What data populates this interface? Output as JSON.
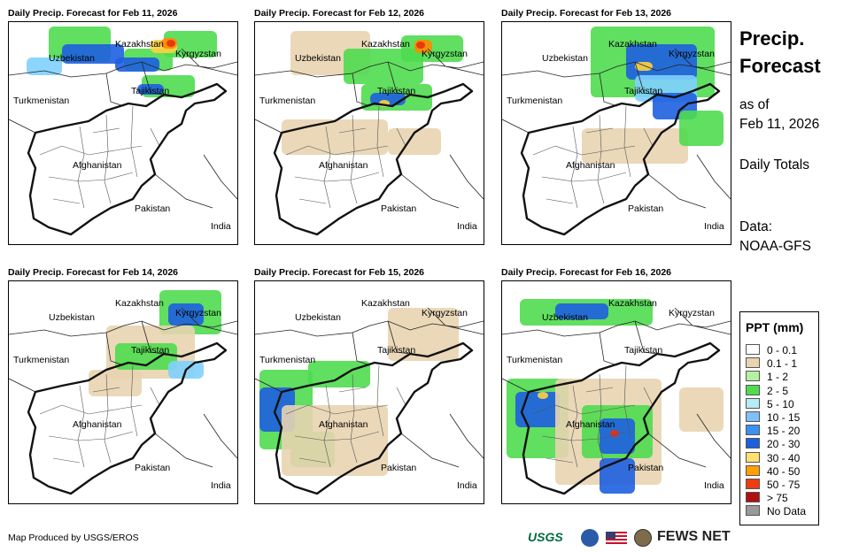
{
  "panels": [
    {
      "title": "Daily Precip. Forecast for Feb 11, 2026",
      "blobs": [
        [
          45,
          5,
          70,
          40,
          "#4fdc4f"
        ],
        [
          130,
          30,
          55,
          25,
          "#4fdc4f"
        ],
        [
          175,
          10,
          60,
          30,
          "#4fdc4f"
        ],
        [
          60,
          25,
          70,
          22,
          "#1e5fe0"
        ],
        [
          120,
          40,
          50,
          16,
          "#1e5fe0"
        ],
        [
          160,
          20,
          30,
          15,
          "#ffd040"
        ],
        [
          172,
          18,
          18,
          12,
          "#ff8800"
        ],
        [
          178,
          20,
          10,
          8,
          "#e83010"
        ],
        [
          150,
          60,
          60,
          25,
          "#4fdc4f"
        ],
        [
          145,
          70,
          30,
          12,
          "#1e5fe0"
        ],
        [
          20,
          40,
          40,
          20,
          "#7fd0ff"
        ]
      ]
    },
    {
      "title": "Daily Precip. Forecast for Feb 12, 2026",
      "blobs": [
        [
          40,
          10,
          90,
          50,
          "#e8d4b0"
        ],
        [
          100,
          30,
          90,
          40,
          "#4fdc4f"
        ],
        [
          165,
          15,
          70,
          30,
          "#4fdc4f"
        ],
        [
          180,
          20,
          20,
          15,
          "#ff8800"
        ],
        [
          182,
          22,
          10,
          8,
          "#e83010"
        ],
        [
          120,
          70,
          80,
          30,
          "#4fdc4f"
        ],
        [
          130,
          80,
          40,
          14,
          "#1e5fe0"
        ],
        [
          140,
          88,
          12,
          8,
          "#ffd040"
        ],
        [
          30,
          110,
          120,
          40,
          "#e8d4b0"
        ],
        [
          150,
          120,
          60,
          30,
          "#e8d4b0"
        ]
      ]
    },
    {
      "title": "Daily Precip. Forecast for Feb 13, 2026",
      "blobs": [
        [
          100,
          5,
          140,
          80,
          "#4fdc4f"
        ],
        [
          140,
          25,
          80,
          40,
          "#1e5fe0"
        ],
        [
          150,
          60,
          70,
          30,
          "#7fd0ff"
        ],
        [
          170,
          80,
          50,
          30,
          "#1e5fe0"
        ],
        [
          90,
          120,
          120,
          40,
          "#e8d4b0"
        ],
        [
          200,
          100,
          50,
          40,
          "#4fdc4f"
        ],
        [
          150,
          45,
          20,
          10,
          "#ffd040"
        ]
      ]
    },
    {
      "title": "Daily Precip. Forecast for Feb 14, 2026",
      "blobs": [
        [
          170,
          10,
          70,
          50,
          "#4fdc4f"
        ],
        [
          180,
          25,
          40,
          25,
          "#1e5fe0"
        ],
        [
          110,
          50,
          100,
          60,
          "#e8d4b0"
        ],
        [
          120,
          70,
          70,
          30,
          "#4fdc4f"
        ],
        [
          180,
          90,
          40,
          20,
          "#7fd0ff"
        ],
        [
          90,
          100,
          60,
          30,
          "#e8d4b0"
        ]
      ]
    },
    {
      "title": "Daily Precip. Forecast for Feb 15, 2026",
      "blobs": [
        [
          5,
          100,
          60,
          90,
          "#4fdc4f"
        ],
        [
          5,
          120,
          40,
          50,
          "#1e5fe0"
        ],
        [
          40,
          170,
          50,
          40,
          "#4fdc4f"
        ],
        [
          30,
          140,
          120,
          80,
          "#e8d4b0"
        ],
        [
          150,
          30,
          80,
          60,
          "#e8d4b0"
        ],
        [
          60,
          90,
          70,
          30,
          "#4fdc4f"
        ]
      ]
    },
    {
      "title": "Daily Precip. Forecast for Feb 16, 2026",
      "blobs": [
        [
          20,
          20,
          150,
          30,
          "#4fdc4f"
        ],
        [
          60,
          25,
          60,
          18,
          "#1e5fe0"
        ],
        [
          5,
          110,
          70,
          90,
          "#4fdc4f"
        ],
        [
          15,
          125,
          50,
          40,
          "#1e5fe0"
        ],
        [
          40,
          125,
          12,
          8,
          "#ffd040"
        ],
        [
          60,
          110,
          120,
          120,
          "#e8d4b0"
        ],
        [
          90,
          140,
          80,
          60,
          "#4fdc4f"
        ],
        [
          110,
          155,
          40,
          40,
          "#1e5fe0"
        ],
        [
          122,
          168,
          10,
          8,
          "#e83010"
        ],
        [
          110,
          200,
          40,
          40,
          "#1e5fe0"
        ],
        [
          200,
          120,
          50,
          50,
          "#e8d4b0"
        ]
      ]
    }
  ],
  "labels": {
    "uzbekistan": "Uzbekistan",
    "kazakhstan": "Kazakhstan",
    "kyrgyzstan": "Kyrgyzstan",
    "tajikistan": "Tajikistan",
    "turkmenistan": "Turkmenistan",
    "afghanistan": "Afghanistan",
    "pakistan": "Pakistan",
    "india": "India"
  },
  "side": {
    "title_line1": "Precip.",
    "title_line2": "Forecast",
    "asof_line1": "as of",
    "asof_line2": "Feb 11, 2026",
    "totals": "Daily Totals",
    "data_line1": "Data:",
    "data_line2": "NOAA-GFS"
  },
  "legend": {
    "title": "PPT (mm)",
    "items": [
      {
        "label": "0 - 0.1",
        "color": "#ffffff"
      },
      {
        "label": "0.1 - 1",
        "color": "#e8d4b0"
      },
      {
        "label": "1 - 2",
        "color": "#b4f0a0"
      },
      {
        "label": "2 - 5",
        "color": "#4fdc4f"
      },
      {
        "label": "5 - 10",
        "color": "#b4ecf8"
      },
      {
        "label": "10 - 15",
        "color": "#7fc0f8"
      },
      {
        "label": "15 - 20",
        "color": "#3c90f0"
      },
      {
        "label": "20 - 30",
        "color": "#1e5fe0"
      },
      {
        "label": "30 - 40",
        "color": "#ffe070"
      },
      {
        "label": "40 - 50",
        "color": "#ffa000"
      },
      {
        "label": "50 - 75",
        "color": "#f03c10"
      },
      {
        "label": "> 75",
        "color": "#b01010"
      },
      {
        "label": "No Data",
        "color": "#999999"
      }
    ]
  },
  "footer": {
    "credit": "Map Produced by USGS/EROS",
    "usgs": "USGS",
    "fews": "FEWS NET"
  }
}
